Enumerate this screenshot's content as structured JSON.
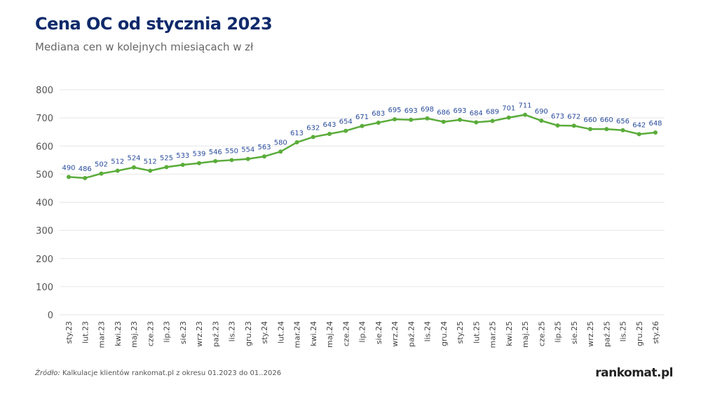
{
  "title": "Cena OC od stycznia 2023",
  "subtitle": "Mediana cen w kolejnych miesiącach w zł",
  "source_label": "Źródło:",
  "source_text": " Kalkulacje klientów rankomat.pl z okresu 01.2023 do 01..2026",
  "logo": "rankomat.pl",
  "chart_data": {
    "type": "line",
    "title": "Cena OC od stycznia 2023",
    "subtitle": "Mediana cen w kolejnych miesiącach w zł",
    "ylim": [
      0,
      800
    ],
    "yticks": [
      0,
      100,
      200,
      300,
      400,
      500,
      600,
      700,
      800
    ],
    "grid": true,
    "line_color": "#5aac3a",
    "label_color": "#2a4c9c",
    "categories": [
      "sty.23",
      "lut.23",
      "mar.23",
      "kwi.23",
      "maj.23",
      "cze.23",
      "lip.23",
      "sie.23",
      "wrz.23",
      "paź.23",
      "lis.23",
      "gru.23",
      "sty.24",
      "lut.24",
      "mar.24",
      "kwi.24",
      "maj.24",
      "cze.24",
      "lip.24",
      "sie.24",
      "wrz.24",
      "paź.24",
      "lis.24",
      "gru.24",
      "sty.25",
      "lut.25",
      "mar.25",
      "kwi.25",
      "maj.25",
      "cze.25",
      "lip.25",
      "sie.25",
      "wrz.25",
      "paź.25",
      "lis.25",
      "gru.25",
      "sty.26"
    ],
    "values": [
      490,
      486,
      502,
      512,
      524,
      512,
      525,
      533,
      539,
      546,
      550,
      554,
      563,
      580,
      613,
      632,
      643,
      654,
      671,
      683,
      695,
      693,
      698,
      686,
      693,
      684,
      689,
      701,
      711,
      690,
      673,
      672,
      660,
      660,
      656,
      642,
      648
    ]
  }
}
